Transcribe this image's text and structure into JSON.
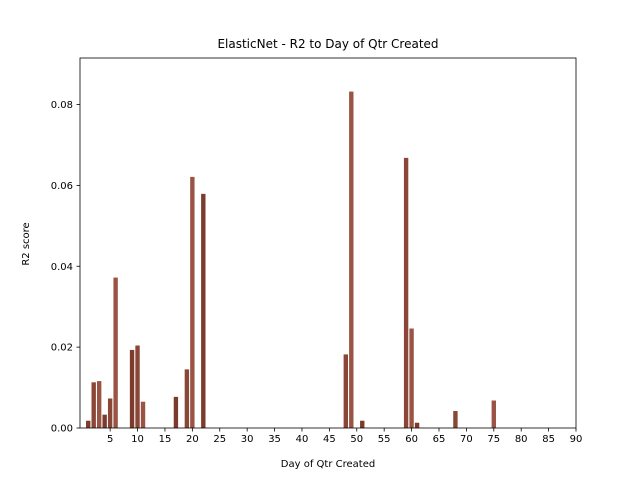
{
  "chart_data": {
    "type": "bar",
    "title": "ElasticNet - R2 to Day of Qtr Created",
    "xlabel": "Day of Qtr Created",
    "ylabel": "R2 score",
    "xlim": [
      -0.5,
      90
    ],
    "ylim": [
      0,
      0.0915
    ],
    "xticks": [
      5,
      10,
      15,
      20,
      25,
      30,
      35,
      40,
      45,
      50,
      55,
      60,
      65,
      70,
      75,
      80,
      85,
      90
    ],
    "yticks": [
      0.0,
      0.02,
      0.04,
      0.06,
      0.08
    ],
    "ytick_labels": [
      "0.00",
      "0.02",
      "0.04",
      "0.06",
      "0.08"
    ],
    "grid": false,
    "bar_colors": [
      "#7d3b2d",
      "#8a4636",
      "#9a5344"
    ],
    "bars": [
      {
        "x": 1,
        "value": 0.0018
      },
      {
        "x": 2,
        "value": 0.0113
      },
      {
        "x": 3,
        "value": 0.0116
      },
      {
        "x": 4,
        "value": 0.0033
      },
      {
        "x": 5,
        "value": 0.0073
      },
      {
        "x": 6,
        "value": 0.0372
      },
      {
        "x": 9,
        "value": 0.0193
      },
      {
        "x": 10,
        "value": 0.0204
      },
      {
        "x": 11,
        "value": 0.0065
      },
      {
        "x": 17,
        "value": 0.0077
      },
      {
        "x": 19,
        "value": 0.0145
      },
      {
        "x": 20,
        "value": 0.0621
      },
      {
        "x": 22,
        "value": 0.0579
      },
      {
        "x": 48,
        "value": 0.0182
      },
      {
        "x": 49,
        "value": 0.0832
      },
      {
        "x": 51,
        "value": 0.0018
      },
      {
        "x": 59,
        "value": 0.0668
      },
      {
        "x": 60,
        "value": 0.0246
      },
      {
        "x": 61,
        "value": 0.0013
      },
      {
        "x": 68,
        "value": 0.0042
      },
      {
        "x": 75,
        "value": 0.0068
      }
    ]
  }
}
